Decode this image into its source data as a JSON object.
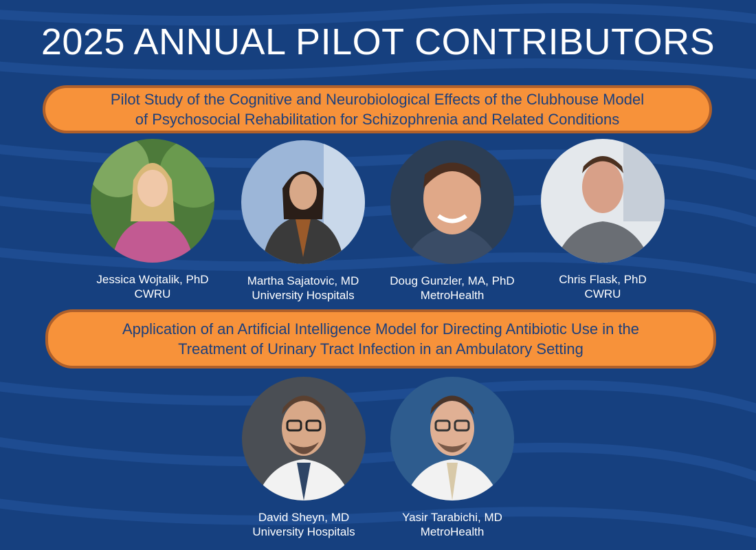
{
  "header": {
    "title": "2025 ANNUAL PILOT CONTRIBUTORS"
  },
  "colors": {
    "background": "#16407f",
    "wave": "#1f4e93",
    "banner_fill": "#f7923a",
    "banner_border": "#b0602a",
    "banner_text": "#1c3f7c",
    "name_text": "#ffffff"
  },
  "studies": [
    {
      "title": "Pilot Study of the Cognitive and Neurobiological Effects of the Clubhouse Model\nof Psychosocial Rehabilitation for Schizophrenia and Related Conditions",
      "contributors": [
        {
          "name": "Jessica Wojtalik, PhD",
          "org": "CWRU"
        },
        {
          "name": "Martha Sajatovic, MD",
          "org": "University Hospitals"
        },
        {
          "name": "Doug Gunzler, MA, PhD",
          "org": "MetroHealth"
        },
        {
          "name": "Chris Flask, PhD",
          "org": "CWRU"
        }
      ]
    },
    {
      "title": "Application of an Artificial Intelligence Model for Directing Antibiotic Use in the\nTreatment of Urinary Tract Infection in an Ambulatory Setting",
      "contributors": [
        {
          "name": "David Sheyn, MD",
          "org": "University Hospitals"
        },
        {
          "name": "Yasir Tarabichi, MD",
          "org": "MetroHealth"
        }
      ]
    }
  ]
}
